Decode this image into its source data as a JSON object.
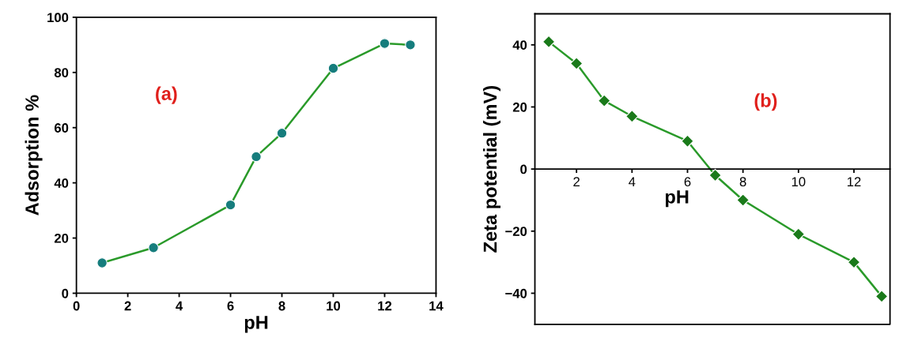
{
  "chart_data": [
    {
      "type": "line",
      "xlabel": "pH",
      "ylabel": "Adsorption %",
      "annotations": [
        "(a)"
      ],
      "x": [
        1,
        3,
        6,
        7,
        8,
        10,
        12,
        13
      ],
      "xlim": [
        0,
        14
      ],
      "xticks": [
        0,
        2,
        4,
        6,
        8,
        10,
        12,
        14
      ],
      "ylim": [
        0,
        100
      ],
      "yticks": [
        0,
        20,
        40,
        60,
        80,
        100
      ],
      "marker": "circle",
      "grid": false,
      "legend": false,
      "series": [
        {
          "color": "#2a9a2a",
          "colors": [
            "#167d7d",
            "#167d7d",
            "#167d7d",
            "#167d7d",
            "#167d7d",
            "#167d7d",
            "#167d7d",
            "#167d7d"
          ],
          "values": [
            11,
            16.5,
            32,
            49.5,
            58,
            81.5,
            90.5,
            90
          ]
        }
      ]
    },
    {
      "type": "line",
      "xlabel": "pH",
      "ylabel": "Zeta potential (mV)",
      "annotations": [
        "(b)"
      ],
      "x": [
        1,
        2,
        3,
        4,
        6,
        7,
        8,
        10,
        12,
        13
      ],
      "xlim": [
        0.5,
        13.3
      ],
      "xticks": [
        2,
        4,
        6,
        8,
        10,
        12
      ],
      "ylim": [
        -50,
        50
      ],
      "yticks": [
        {
          "value": -40,
          "label": "−40"
        },
        {
          "value": -20,
          "label": "−20"
        },
        0,
        20,
        40
      ],
      "marker": "diamond",
      "grid": false,
      "legend": false,
      "series": [
        {
          "color": "#2a9a2a",
          "colors": [
            "#1a7a1a",
            "#1a7a1a",
            "#1a7a1a",
            "#1a7a1a",
            "#1a7a1a",
            "#1a7a1a",
            "#1a7a1a",
            "#1a7a1a",
            "#1a7a1a",
            "#1a7a1a"
          ],
          "values": [
            41,
            34,
            22,
            17,
            9,
            -2,
            -10,
            -21,
            -30,
            -41
          ]
        }
      ]
    }
  ]
}
